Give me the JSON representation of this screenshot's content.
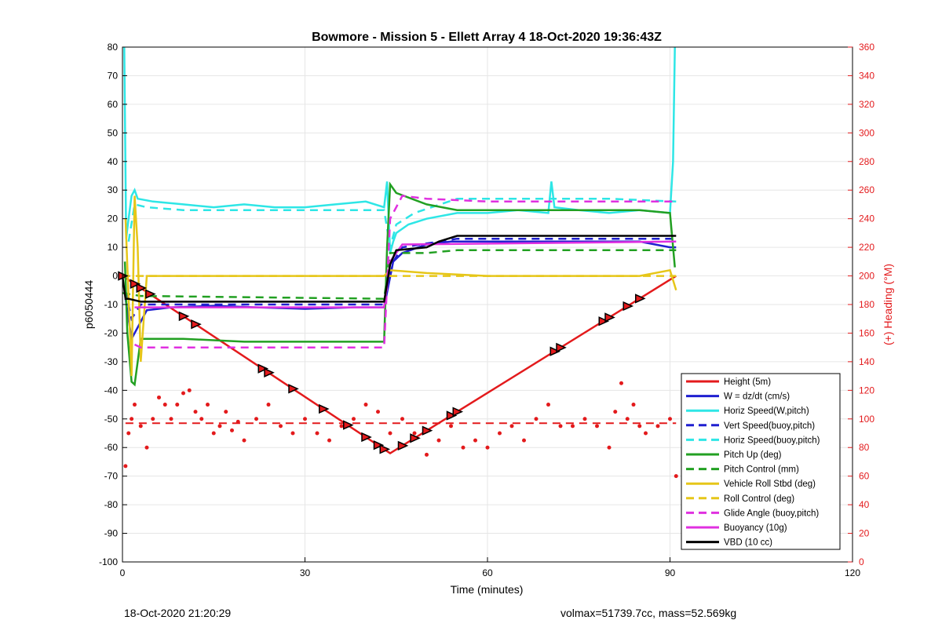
{
  "chart_data": {
    "type": "line",
    "title": "Bowmore - Mission 5 - Ellett Array 4 18-Oct-2020 19:36:43Z",
    "xlabel": "Time (minutes)",
    "ylabel": "p6050444",
    "y2label": "(+) Heading (°M)",
    "xlim": [
      0,
      120
    ],
    "ylim": [
      -100,
      80
    ],
    "y2lim": [
      0,
      360
    ],
    "xticks": [
      0,
      30,
      60,
      90,
      120
    ],
    "yticks": [
      -100,
      -90,
      -80,
      -70,
      -60,
      -50,
      -40,
      -30,
      -20,
      -10,
      0,
      10,
      20,
      30,
      40,
      50,
      60,
      70,
      80
    ],
    "y2ticks": [
      0,
      20,
      40,
      60,
      80,
      100,
      120,
      140,
      160,
      180,
      200,
      220,
      240,
      260,
      280,
      300,
      320,
      340,
      360
    ],
    "grid": true,
    "legend_position": "bottom-right",
    "colors": {
      "red": "#e31a1c",
      "blue": "#1f1fd0",
      "cyan": "#2ee6e6",
      "green": "#22a022",
      "yellow": "#e6c619",
      "magenta": "#e030e0",
      "black": "#000000",
      "right_axis": "#e31a1c"
    },
    "series": [
      {
        "name": "Height (5m)",
        "color": "#e31a1c",
        "dash": false,
        "x": [
          0,
          44,
          91
        ],
        "y": [
          0,
          -62,
          0
        ]
      },
      {
        "name": "W = dz/dt (cm/s)",
        "color": "#1f1fd0",
        "dash": false,
        "x": [
          0.5,
          1.5,
          2.5,
          4,
          8,
          15,
          22,
          30,
          38,
          43,
          44.5,
          46,
          50,
          54,
          60,
          70,
          80,
          85,
          90,
          91
        ],
        "y": [
          -8,
          -22,
          -18,
          -12,
          -11,
          -10.5,
          -11,
          -11.5,
          -11,
          -11,
          5,
          8,
          11,
          12,
          12,
          12,
          12,
          12,
          10,
          10
        ]
      },
      {
        "name": "Horiz Speed(W,pitch)",
        "color": "#2ee6e6",
        "dash": false,
        "x": [
          0.3,
          0.6,
          1,
          1.5,
          2,
          2.5,
          5,
          10,
          15,
          20,
          25,
          30,
          35,
          40,
          43,
          43.5,
          44,
          44.5,
          45,
          47,
          50,
          55,
          60,
          65,
          70,
          70.5,
          71,
          75,
          80,
          85,
          90,
          90.5,
          90.8
        ],
        "y": [
          80,
          13,
          20,
          28,
          30,
          27,
          26,
          25,
          24,
          25,
          24,
          24,
          25,
          26,
          24,
          33,
          8,
          12,
          15,
          18,
          20,
          22,
          22,
          23,
          22,
          33,
          24,
          23,
          22,
          23,
          22,
          40,
          80
        ]
      },
      {
        "name": "Vert Speed(buoy,pitch)",
        "color": "#1f1fd0",
        "dash": true,
        "x": [
          0.5,
          1.5,
          3,
          10,
          20,
          30,
          40,
          43,
          44.5,
          46,
          55,
          65,
          75,
          85,
          91
        ],
        "y": [
          -5,
          -15,
          -10,
          -10,
          -10,
          -10,
          -10,
          -10,
          5,
          10,
          13,
          13,
          13,
          13,
          13
        ]
      },
      {
        "name": "Horiz Speed(buoy,pitch)",
        "color": "#2ee6e6",
        "dash": true,
        "x": [
          1,
          2,
          4,
          10,
          20,
          30,
          40,
          43,
          44,
          45,
          48,
          55,
          70,
          80,
          91
        ],
        "y": [
          12,
          25,
          24,
          23,
          23,
          23,
          23,
          23,
          10,
          18,
          22,
          27,
          27,
          27,
          26
        ]
      },
      {
        "name": "Pitch Up (deg)",
        "color": "#22a022",
        "dash": false,
        "x": [
          0.4,
          0.8,
          1.5,
          2,
          2.5,
          3,
          5,
          10,
          20,
          30,
          40,
          43,
          43.5,
          44,
          45,
          50,
          55,
          60,
          70,
          80,
          85,
          90,
          90.8
        ],
        "y": [
          5,
          -20,
          -37,
          -38,
          -30,
          -22,
          -22,
          -22,
          -23,
          -23,
          -23,
          -23,
          10,
          32,
          29,
          25,
          23,
          23,
          23,
          23,
          23,
          22,
          3
        ]
      },
      {
        "name": "Pitch Control (mm)",
        "color": "#22a022",
        "dash": true,
        "x": [
          0,
          3,
          43,
          44,
          46,
          50,
          55,
          91
        ],
        "y": [
          -6,
          -7,
          -8,
          8,
          8,
          8,
          9,
          9
        ]
      },
      {
        "name": "Vehicle Roll Stbd (deg)",
        "color": "#e6c619",
        "dash": false,
        "x": [
          0.5,
          1.5,
          2,
          2.5,
          3,
          4,
          5,
          10,
          20,
          30,
          40,
          43,
          44,
          50,
          60,
          70,
          80,
          85,
          90,
          91
        ],
        "y": [
          20,
          -35,
          28,
          10,
          -30,
          0,
          0,
          0,
          0,
          0,
          0,
          0,
          2,
          1,
          0,
          0,
          0,
          0,
          2,
          -5
        ]
      },
      {
        "name": "Roll Control (deg)",
        "color": "#e6c619",
        "dash": true,
        "x": [
          0,
          5,
          10,
          20,
          30,
          40,
          43,
          50,
          60,
          70,
          80,
          91
        ],
        "y": [
          0,
          0,
          0,
          0,
          0,
          0,
          0,
          0,
          0,
          0,
          0,
          0
        ]
      },
      {
        "name": "Glide Angle (buoy,pitch)",
        "color": "#e030e0",
        "dash": true,
        "x": [
          2,
          3,
          10,
          20,
          30,
          40,
          43,
          44,
          46,
          50,
          60,
          70,
          80,
          91
        ],
        "y": [
          -24,
          -25,
          -25,
          -25,
          -25,
          -25,
          -25,
          20,
          28,
          27,
          26,
          26,
          26,
          26
        ]
      },
      {
        "name": "Buoyancy (10g)",
        "color": "#e030e0",
        "dash": false,
        "x": [
          2,
          43,
          44,
          46,
          91
        ],
        "y": [
          -11,
          -11,
          5,
          11,
          12
        ]
      },
      {
        "name": "VBD (10 cc)",
        "color": "#000000",
        "dash": false,
        "x": [
          0,
          0.5,
          1,
          3,
          43,
          44,
          45,
          50,
          52,
          55,
          91
        ],
        "y": [
          0,
          -8,
          -8,
          -9,
          -9,
          4,
          9,
          10,
          12,
          14,
          14
        ]
      }
    ],
    "heading_series": {
      "axis": "right",
      "color": "#e31a1c",
      "points_x": [
        0.5,
        1,
        1.5,
        2,
        3,
        4,
        5,
        6,
        7,
        8,
        9,
        10,
        11,
        12,
        13,
        14,
        15,
        16,
        17,
        18,
        19,
        20,
        22,
        24,
        26,
        28,
        30,
        32,
        34,
        36,
        38,
        40,
        42,
        44,
        46,
        48,
        50,
        52,
        54,
        56,
        58,
        60,
        62,
        64,
        66,
        68,
        70,
        72,
        74,
        76,
        78,
        80,
        81,
        82,
        83,
        84,
        85,
        86,
        88,
        90,
        91
      ],
      "points_y": [
        67,
        90,
        100,
        110,
        95,
        80,
        100,
        115,
        110,
        100,
        110,
        118,
        120,
        105,
        100,
        110,
        90,
        95,
        105,
        92,
        98,
        85,
        100,
        110,
        95,
        90,
        100,
        90,
        85,
        95,
        100,
        110,
        105,
        90,
        100,
        90,
        75,
        85,
        95,
        80,
        85,
        80,
        90,
        95,
        85,
        100,
        110,
        95,
        95,
        100,
        95,
        80,
        105,
        125,
        100,
        110,
        95,
        90,
        95,
        100,
        60
      ],
      "mean_dashed": 97
    },
    "markers_x": [
      0,
      2,
      3,
      4.5,
      10,
      12,
      23,
      24,
      28,
      33,
      37,
      40,
      42,
      43,
      46,
      48,
      50,
      54,
      55,
      71,
      72,
      79,
      80,
      83,
      85
    ],
    "footer_left": "18-Oct-2020 21:20:29",
    "footer_right": "volmax=51739.7cc, mass=52.569kg"
  }
}
